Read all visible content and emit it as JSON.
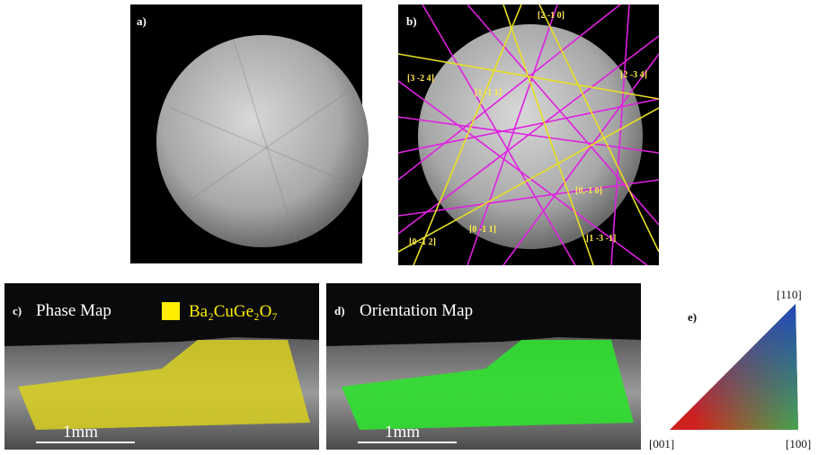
{
  "panel_a": {
    "label": "a)"
  },
  "panel_b": {
    "label": "b)",
    "annotations": [
      "[2 -1 0]",
      "[3 -2 4]",
      "[1 -1 1]",
      "[2 -3 4]",
      "[0,-1 0]",
      "[0 -1 2]",
      "[0 -1 1]",
      "[1 -3 -1]"
    ]
  },
  "panel_c": {
    "label": "c)",
    "title": "Phase Map",
    "legend": "Ba₂CuGe₂O₇",
    "scale_bar": "1mm"
  },
  "panel_d": {
    "label": "d)",
    "title": "Orientation Map",
    "scale_bar": "1mm"
  },
  "panel_e": {
    "label": "e)",
    "corners": [
      "[110]",
      "[001]",
      "[100]"
    ]
  }
}
